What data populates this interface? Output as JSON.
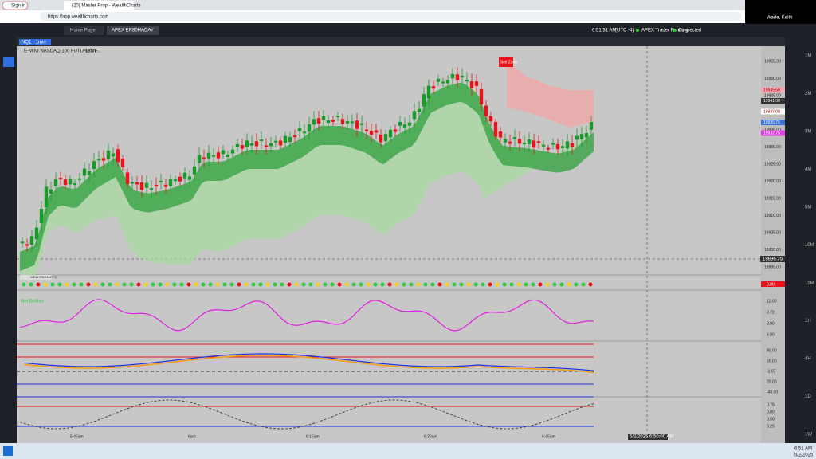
{
  "browser": {
    "sign_in": "Sign in",
    "tab_title": "(20) Master Prop - WealthCharts",
    "url": "https://app.wealthcharts.com"
  },
  "user": "Wade, Keith",
  "app_tabs": [
    "Home Page",
    "APEX ER80HADAY"
  ],
  "status": {
    "time": "6:51:31 AM",
    "timezone": "(UTC -4)",
    "account": "APEX Trader Funding",
    "connection": "Connected"
  },
  "chart": {
    "symbol": "NQ1 · 1min",
    "title": "E-MINI NASDAQ 100 FUTURES F...",
    "interval": "1min",
    "price_labels": [
      "19955.00",
      "19950.00",
      "19945.00",
      "19940.00",
      "19935.00",
      "19930.00",
      "19925.00",
      "19920.00",
      "19915.00",
      "19910.00",
      "19905.00",
      "19900.00",
      "19895.00"
    ],
    "price_tags": [
      {
        "text": "19945.50",
        "color": "#f4a6b4"
      },
      {
        "text": "19941.00",
        "color": "#333333"
      },
      {
        "text": "19937.00",
        "color": "#ffffff"
      },
      {
        "text": "19935.75",
        "color": "#3a6fd8"
      },
      {
        "text": "19932.75",
        "color": "#e040e0"
      }
    ],
    "crosshair_price": "19896.75",
    "crosshair_time": "5/2/2025 6:50:00 AM",
    "time_labels": [
      "5:45am",
      "6am",
      "6:15am",
      "6:30am",
      "6:45am"
    ],
    "sell_zone": "Sell Zone",
    "indicator_name": "WEALTHCHARTS",
    "signal": "Net Bullish",
    "dots_value": "0.00",
    "osc_labels": [
      "12.00",
      "0.72",
      "8.00",
      "4.00"
    ],
    "trend_labels": [
      "80.00",
      "60.00",
      "-1.07",
      "20.00",
      "-40.00"
    ],
    "cycle_labels": [
      "0.76",
      "0.00",
      "0.50",
      "0.25"
    ]
  },
  "timeframes": [
    "1M",
    "2M",
    "3M",
    "4M",
    "5M",
    "10M",
    "15M",
    "1H",
    "4H",
    "1D",
    "1W"
  ],
  "taskbar": {
    "time": "6:51 AM",
    "date": "5/2/2025"
  }
}
